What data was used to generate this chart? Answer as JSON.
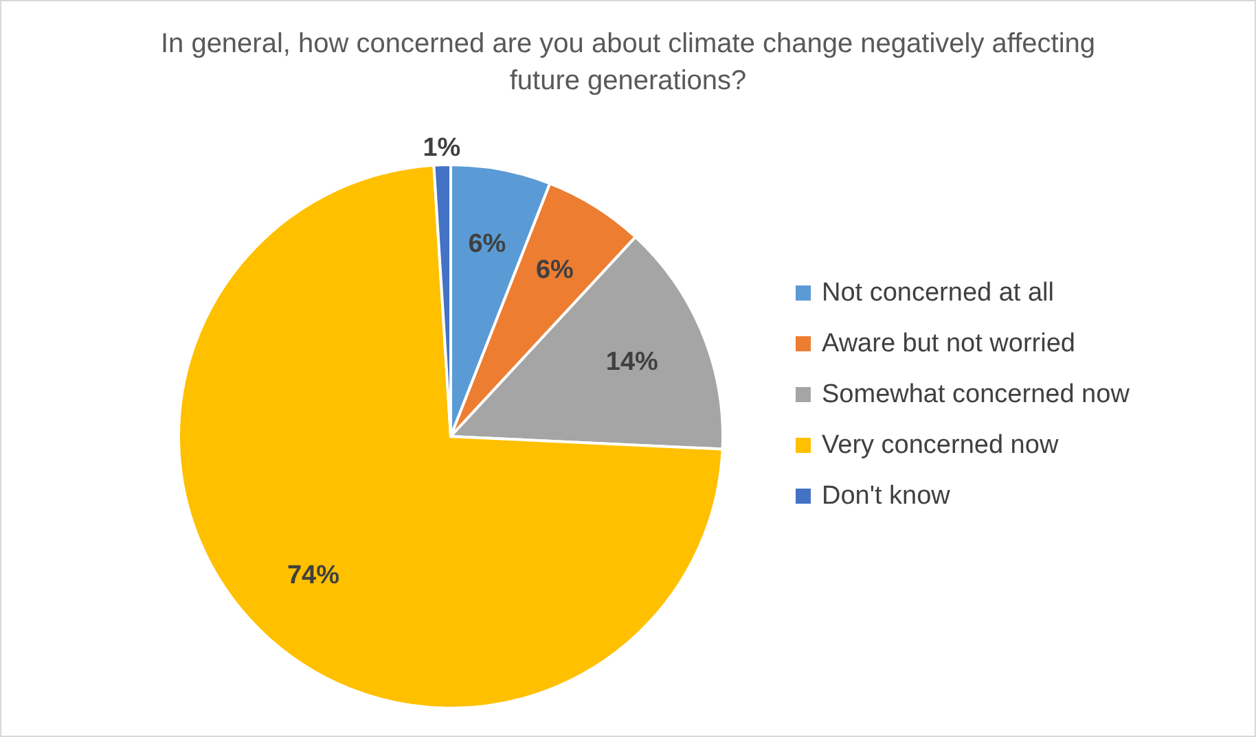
{
  "chart_data": {
    "type": "pie",
    "title": "In general, how concerned are you about climate change negatively affecting future generations?",
    "categories": [
      "Not concerned at all",
      "Aware but not worried",
      "Somewhat concerned now",
      "Very concerned now",
      "Don't know"
    ],
    "values": [
      6,
      6,
      14,
      74,
      1
    ],
    "value_labels": [
      "6%",
      "6%",
      "14%",
      "74%",
      "1%"
    ],
    "colors": [
      "#5b9bd5",
      "#ed7d31",
      "#a5a5a5",
      "#ffc000",
      "#4472c4"
    ],
    "legend": "right"
  }
}
